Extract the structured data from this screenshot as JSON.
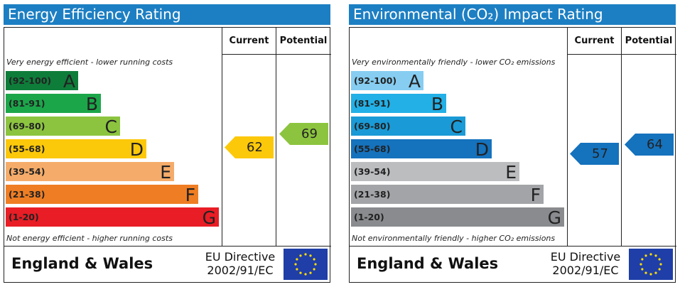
{
  "energy": {
    "title": "Energy Efficiency Rating",
    "col_current": "Current",
    "col_potential": "Potential",
    "top_note": "Very energy efficient - lower running costs",
    "bottom_note": "Not energy efficient - higher running costs",
    "bands": [
      {
        "range": "(92-100)",
        "letter": "A",
        "color": "#0e7d3a"
      },
      {
        "range": "(81-91)",
        "letter": "B",
        "color": "#1ba64a"
      },
      {
        "range": "(69-80)",
        "letter": "C",
        "color": "#8cc43f"
      },
      {
        "range": "(55-68)",
        "letter": "D",
        "color": "#fcc80a"
      },
      {
        "range": "(39-54)",
        "letter": "E",
        "color": "#f5ac6a"
      },
      {
        "range": "(21-38)",
        "letter": "F",
        "color": "#ef7d23"
      },
      {
        "range": "(1-20)",
        "letter": "G",
        "color": "#e81d25"
      }
    ],
    "current": {
      "value": "62",
      "color": "#fcc80a"
    },
    "potential": {
      "value": "69",
      "color": "#8cc43f"
    },
    "country": "England & Wales",
    "directive_line1": "EU Directive",
    "directive_line2": "2002/91/EC"
  },
  "environment": {
    "title": "Environmental (CO₂) Impact Rating",
    "col_current": "Current",
    "col_potential": "Potential",
    "top_note": "Very environmentally friendly - lower CO₂ emissions",
    "bottom_note": "Not environmentally friendly - higher CO₂ emissions",
    "bands": [
      {
        "range": "(92-100)",
        "letter": "A",
        "color": "#86cdf1"
      },
      {
        "range": "(81-91)",
        "letter": "B",
        "color": "#22b0e6"
      },
      {
        "range": "(69-80)",
        "letter": "C",
        "color": "#1a9ad6"
      },
      {
        "range": "(55-68)",
        "letter": "D",
        "color": "#1572bd"
      },
      {
        "range": "(39-54)",
        "letter": "E",
        "color": "#bcbdbf"
      },
      {
        "range": "(21-38)",
        "letter": "F",
        "color": "#a2a4a7"
      },
      {
        "range": "(1-20)",
        "letter": "G",
        "color": "#898b8e"
      }
    ],
    "current": {
      "value": "57",
      "color": "#1572bd"
    },
    "potential": {
      "value": "64",
      "color": "#1572bd"
    },
    "country": "England & Wales",
    "directive_line1": "EU Directive",
    "directive_line2": "2002/91/EC"
  }
}
